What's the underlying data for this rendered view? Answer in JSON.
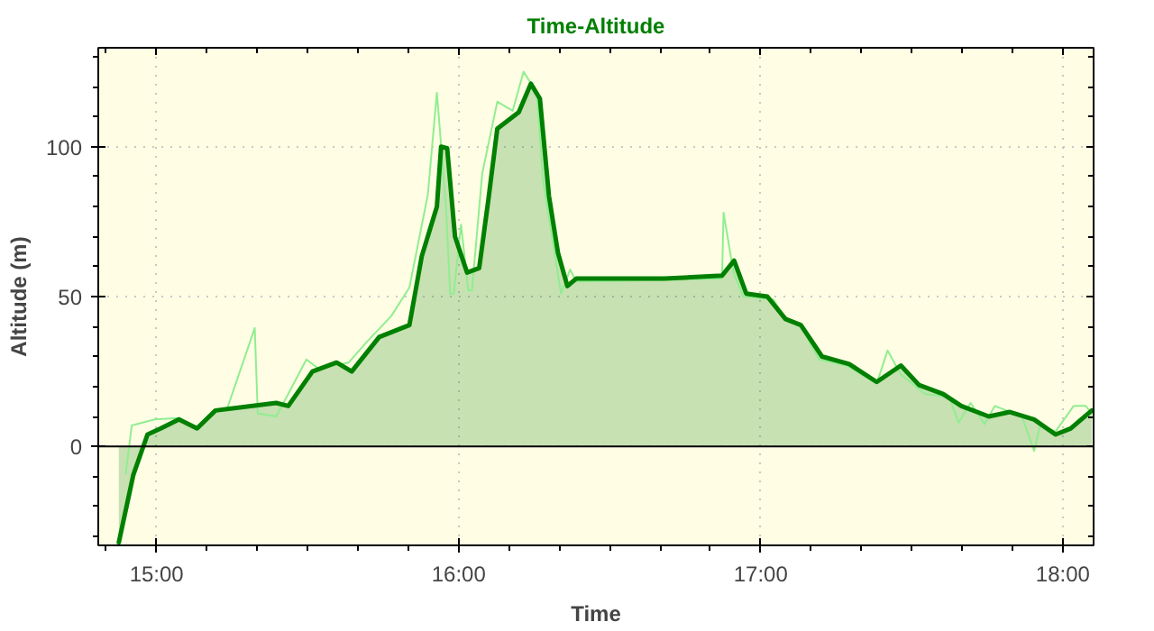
{
  "chart_data": {
    "type": "line",
    "title": "Time-Altitude",
    "xlabel": "Time",
    "ylabel": "Altitude (m)",
    "xlim": [
      14.807,
      18.102
    ],
    "ylim": [
      -33,
      133
    ],
    "xticks": [
      {
        "value": 15,
        "label": "15:00"
      },
      {
        "value": 16,
        "label": "16:00"
      },
      {
        "value": 17,
        "label": "17:00"
      },
      {
        "value": 18,
        "label": "18:00"
      }
    ],
    "yticks": [
      0,
      50,
      100
    ],
    "grid": true,
    "ref_lines": [
      {
        "axis": "y",
        "value": 0,
        "color": "#000000"
      }
    ],
    "series": [
      {
        "color": "#90ee90",
        "x": [
          14.898,
          14.918,
          14.994,
          15.074,
          15.134,
          15.195,
          15.235,
          15.325,
          15.335,
          15.396,
          15.436,
          15.496,
          15.536,
          15.636,
          15.697,
          15.777,
          15.837,
          15.898,
          15.928,
          15.958,
          15.972,
          15.984,
          16.008,
          16.032,
          16.044,
          16.078,
          16.128,
          16.179,
          16.215,
          16.259,
          16.279,
          16.339,
          16.369,
          16.389,
          16.681,
          16.872,
          16.877,
          16.91,
          16.942,
          17.042,
          17.082,
          17.133,
          17.193,
          17.283,
          17.384,
          17.42,
          17.464,
          17.544,
          17.624,
          17.655,
          17.695,
          17.741,
          17.775,
          17.865,
          17.905,
          17.925,
          17.976,
          18.036,
          18.076,
          18.096
        ],
        "values": [
          -9,
          7,
          9,
          9.5,
          6,
          11.5,
          13,
          39.5,
          11,
          10,
          17.5,
          29,
          26,
          28,
          35,
          43.5,
          53,
          84,
          118,
          80,
          51,
          51,
          74,
          52,
          52,
          91,
          115,
          112,
          125,
          118,
          89,
          51,
          59,
          55,
          55.5,
          56,
          78,
          58,
          50,
          49,
          42.5,
          40.5,
          29,
          27,
          21,
          32,
          24,
          17.5,
          16.5,
          8,
          14.5,
          7.5,
          13.5,
          10,
          -1.5,
          7,
          5,
          13.5,
          13.5,
          11
        ]
      },
      {
        "type": "area",
        "color": "#008000",
        "x": [
          14.875,
          14.923,
          14.97,
          15.014,
          15.074,
          15.134,
          15.195,
          15.396,
          15.436,
          15.516,
          15.596,
          15.646,
          15.737,
          15.837,
          15.878,
          15.928,
          15.942,
          15.962,
          15.988,
          16.028,
          16.068,
          16.098,
          16.128,
          16.199,
          16.239,
          16.269,
          16.299,
          16.329,
          16.36,
          16.389,
          16.681,
          16.872,
          16.912,
          16.952,
          17.022,
          17.082,
          17.133,
          17.203,
          17.293,
          17.384,
          17.464,
          17.524,
          17.604,
          17.664,
          17.755,
          17.825,
          17.905,
          17.976,
          18.026,
          18.096
        ],
        "values": [
          -32,
          -9.5,
          4,
          6,
          9,
          6,
          12,
          14.5,
          13.5,
          25,
          28,
          25,
          36.5,
          40.5,
          63.5,
          80,
          100,
          99.5,
          70,
          58,
          59.5,
          82,
          106,
          111.5,
          121,
          116,
          83.5,
          64.5,
          53.5,
          56,
          56,
          57,
          62,
          51,
          50,
          42.5,
          40.5,
          30,
          27.5,
          21.5,
          27,
          20.5,
          17.5,
          13.5,
          10,
          11.5,
          9,
          4,
          6,
          12
        ]
      }
    ]
  }
}
